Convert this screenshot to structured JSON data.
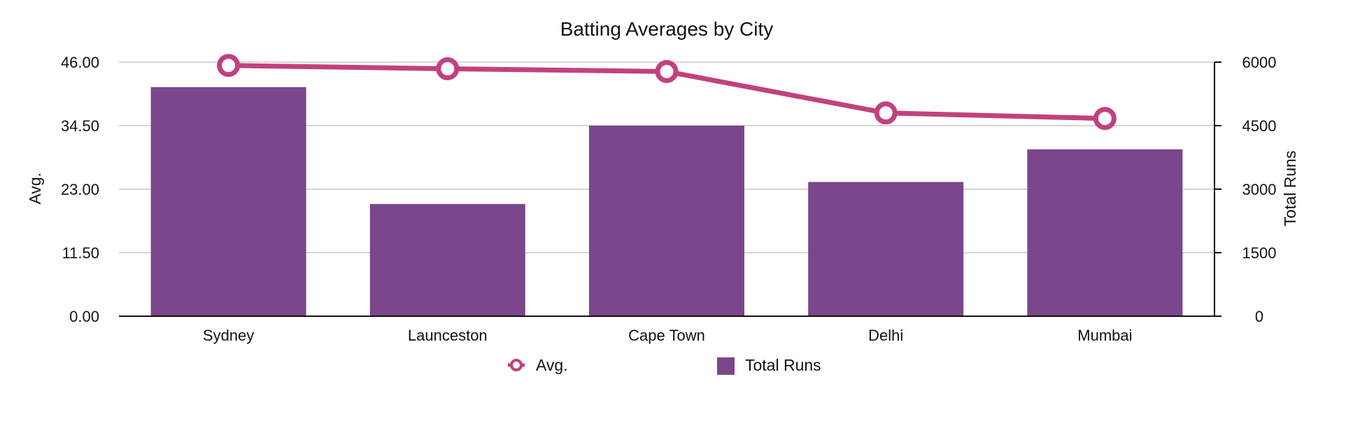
{
  "chart_data": {
    "type": "bar+line",
    "title": "Batting Averages by City",
    "categories": [
      "Sydney",
      "Launceston",
      "Cape Town",
      "Delhi",
      "Mumbai"
    ],
    "y_left": {
      "label": "Avg.",
      "range": [
        0,
        46
      ],
      "ticks": [
        "0.00",
        "11.50",
        "23.00",
        "34.50",
        "46.00"
      ],
      "tick_values": [
        0,
        11.5,
        23,
        34.5,
        46
      ]
    },
    "y_right": {
      "label": "Total Runs",
      "range": [
        0,
        6000
      ],
      "ticks": [
        "0",
        "1500",
        "3000",
        "4500",
        "6000"
      ],
      "tick_values": [
        0,
        1500,
        3000,
        4500,
        6000
      ]
    },
    "series": [
      {
        "name": "Avg.",
        "type": "line",
        "axis": "left",
        "color": "#c2417f",
        "values": [
          45.4,
          44.8,
          44.3,
          36.8,
          35.8
        ]
      },
      {
        "name": "Total Runs",
        "type": "bar",
        "axis": "right",
        "color": "#7b468c",
        "values": [
          5410,
          2650,
          4500,
          3170,
          3940
        ]
      }
    ],
    "grid": true,
    "legend": "bottom-center",
    "legend_items": [
      {
        "label": "Avg.",
        "marker": "line-circle",
        "color": "#c2417f"
      },
      {
        "label": "Total Runs",
        "marker": "square",
        "color": "#7b468c"
      }
    ]
  }
}
